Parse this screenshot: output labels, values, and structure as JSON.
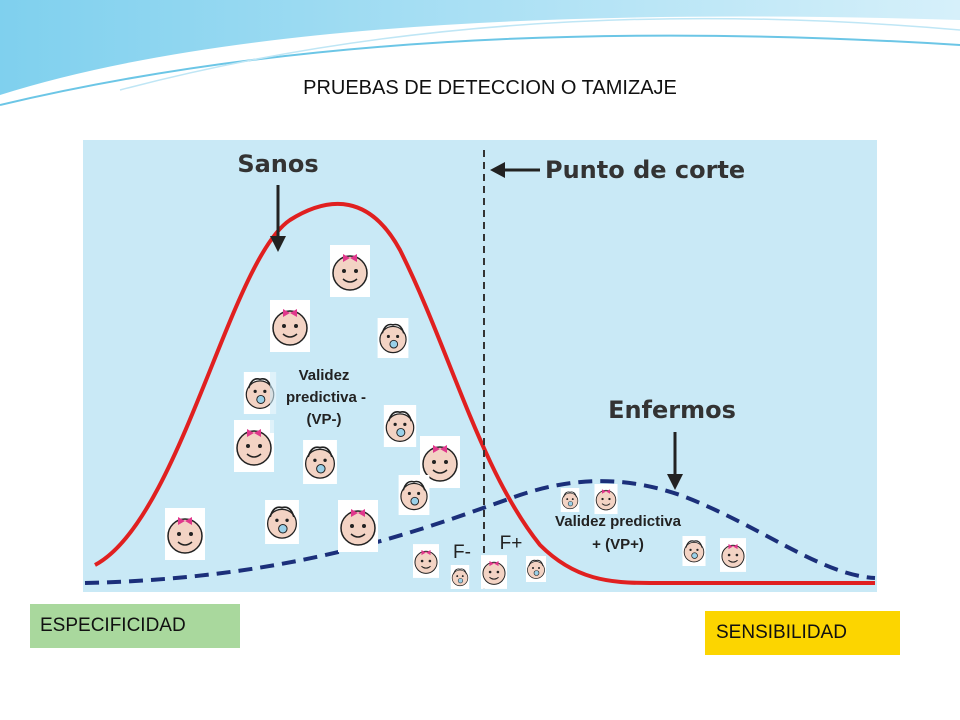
{
  "header": {
    "title": "PRUEBAS DE DETECCION O TAMIZAJE"
  },
  "diagram": {
    "healthy_label": "Sanos",
    "cutoff_label": "Punto de corte",
    "sick_label": "Enfermos",
    "negative_predictive_lines": [
      "Validez",
      "predictiva -",
      "(VP-)"
    ],
    "positive_predictive_lines": [
      "Validez predictiva",
      "+ (VP+)"
    ],
    "false_negative": "F-",
    "false_positive": "F+"
  },
  "boxes": {
    "specificity": "ESPECIFICIDAD",
    "sensitivity": "SENSIBILIDAD"
  }
}
